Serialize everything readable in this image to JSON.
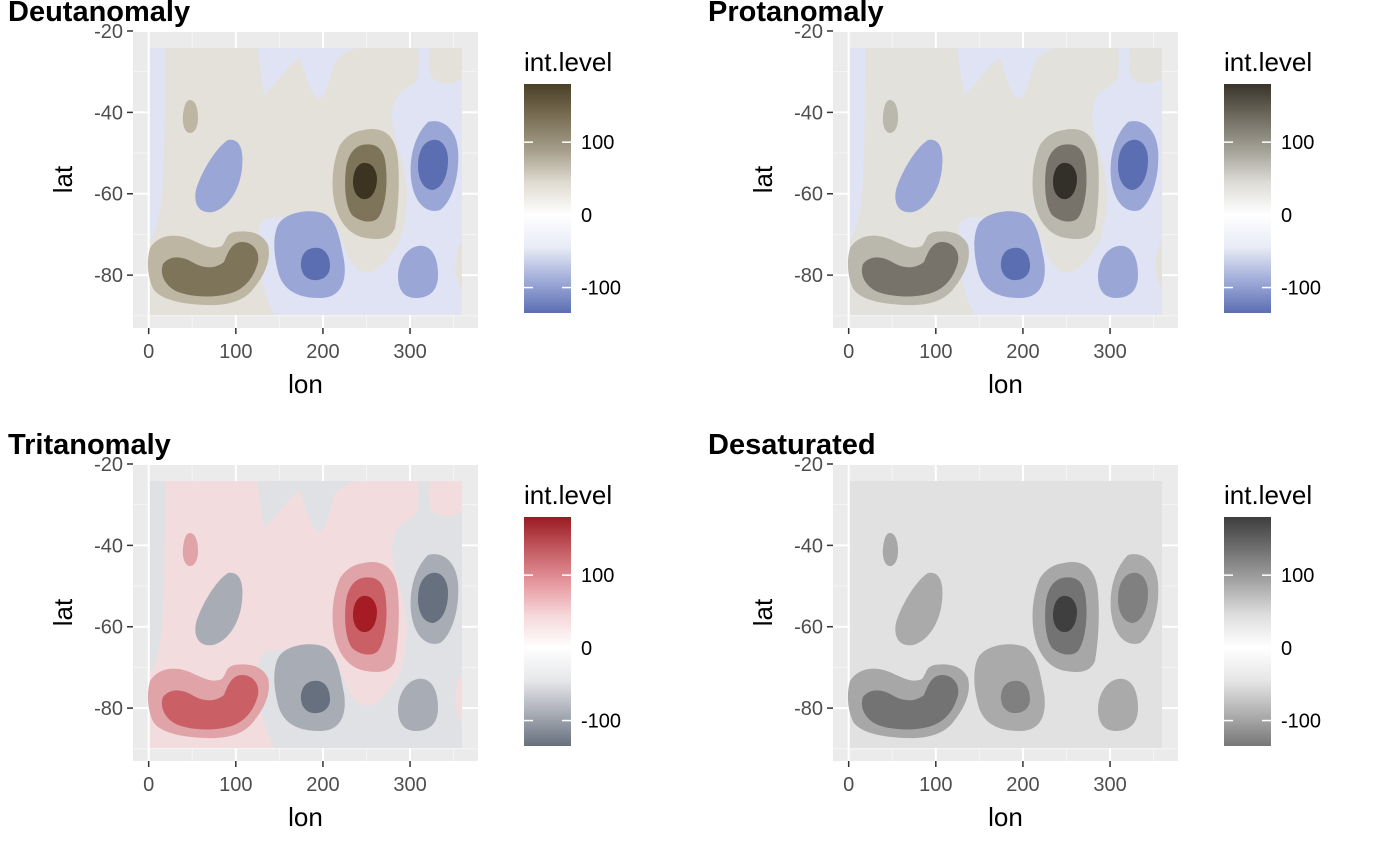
{
  "chart_data": [
    {
      "type": "contour",
      "title": "Deutanomaly",
      "xlabel": "lon",
      "ylabel": "lat",
      "xlim": [
        -18,
        378
      ],
      "ylim": [
        -93,
        -20
      ],
      "x_ticks": [
        0,
        100,
        200,
        300
      ],
      "y_ticks": [
        -20,
        -40,
        -60,
        -80
      ],
      "legend": {
        "title": "int.level",
        "breaks": [
          100,
          0,
          -100
        ],
        "range": [
          -135,
          180
        ],
        "position": "right",
        "colors": [
          "#5b6eb2",
          "#a0acd9",
          "#e8ebf5",
          "#ffffff",
          "#dedacf",
          "#a49d8a",
          "#7a6f55",
          "#4a4027"
        ]
      },
      "colors": {
        "neg3": "#5b6eb2",
        "neg2": "#9aa6d6",
        "neg1": "#dfe3f3",
        "pos1": "#e4e1da",
        "pos2": "#bdb6a3",
        "pos3": "#7e7459",
        "pos4": "#3c3421"
      }
    },
    {
      "type": "contour",
      "title": "Protanomaly",
      "xlabel": "lon",
      "ylabel": "lat",
      "xlim": [
        -18,
        378
      ],
      "ylim": [
        -93,
        -20
      ],
      "x_ticks": [
        0,
        100,
        200,
        300
      ],
      "y_ticks": [
        -20,
        -40,
        -60,
        -80
      ],
      "legend": {
        "title": "int.level",
        "breaks": [
          100,
          0,
          -100
        ],
        "range": [
          -135,
          180
        ],
        "position": "right",
        "colors": [
          "#5b6eb2",
          "#a0acd9",
          "#e8ebf5",
          "#ffffff",
          "#dcdbd6",
          "#a3a096",
          "#6f6b5f",
          "#383429"
        ]
      },
      "colors": {
        "neg3": "#5b6eb2",
        "neg2": "#9aa6d6",
        "neg1": "#dfe3f3",
        "pos1": "#e2e1dc",
        "pos2": "#bab7ad",
        "pos3": "#77736a",
        "pos4": "#33302a"
      }
    },
    {
      "type": "contour",
      "title": "Tritanomaly",
      "xlabel": "lon",
      "ylabel": "lat",
      "xlim": [
        -18,
        378
      ],
      "ylim": [
        -93,
        -20
      ],
      "x_ticks": [
        0,
        100,
        200,
        300
      ],
      "y_ticks": [
        -20,
        -40,
        -60,
        -80
      ],
      "legend": {
        "title": "int.level",
        "breaks": [
          100,
          0,
          -100
        ],
        "range": [
          -135,
          180
        ],
        "position": "right",
        "colors": [
          "#67707e",
          "#a9adb6",
          "#e6e7ea",
          "#ffffff",
          "#f5d7d9",
          "#e5979d",
          "#c45b62",
          "#9a1a22"
        ]
      },
      "colors": {
        "neg3": "#67707e",
        "neg2": "#a8acb5",
        "neg1": "#e0e1e4",
        "pos1": "#f3dcde",
        "pos2": "#e0a3a7",
        "pos3": "#cb5f66",
        "pos4": "#a51c24"
      }
    },
    {
      "type": "contour",
      "title": "Desaturated",
      "xlabel": "lon",
      "ylabel": "lat",
      "xlim": [
        -18,
        378
      ],
      "ylim": [
        -93,
        -20
      ],
      "x_ticks": [
        0,
        100,
        200,
        300
      ],
      "y_ticks": [
        -20,
        -40,
        -60,
        -80
      ],
      "legend": {
        "title": "int.level",
        "breaks": [
          100,
          0,
          -100
        ],
        "range": [
          -135,
          180
        ],
        "position": "right",
        "colors": [
          "#777777",
          "#b0b0b0",
          "#e6e6e6",
          "#ffffff",
          "#dedede",
          "#a6a6a6",
          "#717171",
          "#3e3e3e"
        ]
      },
      "colors": {
        "neg3": "#808080",
        "neg2": "#aaaaaa",
        "neg1": "#e1e1e1",
        "pos1": "#e1e1e1",
        "pos2": "#a7a7a7",
        "pos3": "#737373",
        "pos4": "#3f3f3f"
      }
    }
  ]
}
